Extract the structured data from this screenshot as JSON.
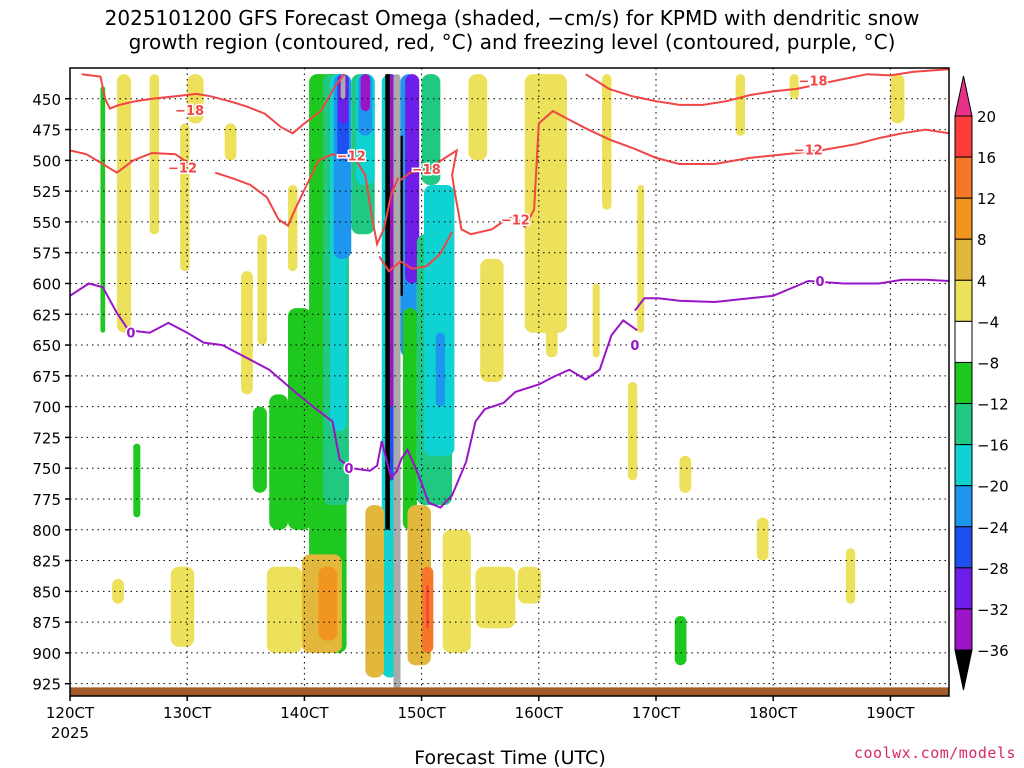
{
  "chart_data": {
    "type": "heatmap",
    "title_line1": "2025101200 GFS Forecast Omega (shaded, −cm/s) for KPMD with dendritic snow",
    "title_line2": "growth region (contoured, red, °C) and freezing level (contoured, purple, °C)",
    "xlabel": "Forecast Time (UTC)",
    "x_ticks": [
      "120CT",
      "130CT",
      "140CT",
      "150CT",
      "160CT",
      "170CT",
      "180CT",
      "190CT"
    ],
    "x_tick_sublabel": "2025",
    "x_range_hours": [
      120,
      195
    ],
    "y_ticks": [
      450,
      475,
      500,
      525,
      550,
      575,
      600,
      625,
      650,
      675,
      700,
      725,
      750,
      775,
      800,
      825,
      850,
      875,
      900,
      925
    ],
    "y_range_hpa": [
      425,
      935
    ],
    "colorbar": {
      "labels": [
        "20",
        "16",
        "12",
        "8",
        "4",
        "−4",
        "−8",
        "−12",
        "−16",
        "−20",
        "−24",
        "−28",
        "−32",
        "−36"
      ],
      "colors": [
        "#ff3b3b",
        "#f5772a",
        "#f0961e",
        "#e2b83c",
        "#ede05a",
        "#ffffff",
        "#1ec81e",
        "#20c882",
        "#0fd2d2",
        "#1e96f0",
        "#1e50f0",
        "#6e1ee6",
        "#9c14c8",
        "#aaaaaa"
      ],
      "top_color": "#e8328a",
      "bottom_color": "#000000"
    },
    "contours": {
      "dendritic_red": {
        "color": "#f04646",
        "labels": [
          "−18",
          "−12",
          "−12",
          "−18",
          "−12",
          "−12",
          "−18"
        ]
      },
      "freezing_purple": {
        "color": "#9a14c8",
        "labels": [
          "0",
          "0",
          "0",
          "0"
        ]
      }
    },
    "ground_color": "#a35a2a"
  },
  "credit": "coolwx.com/models"
}
